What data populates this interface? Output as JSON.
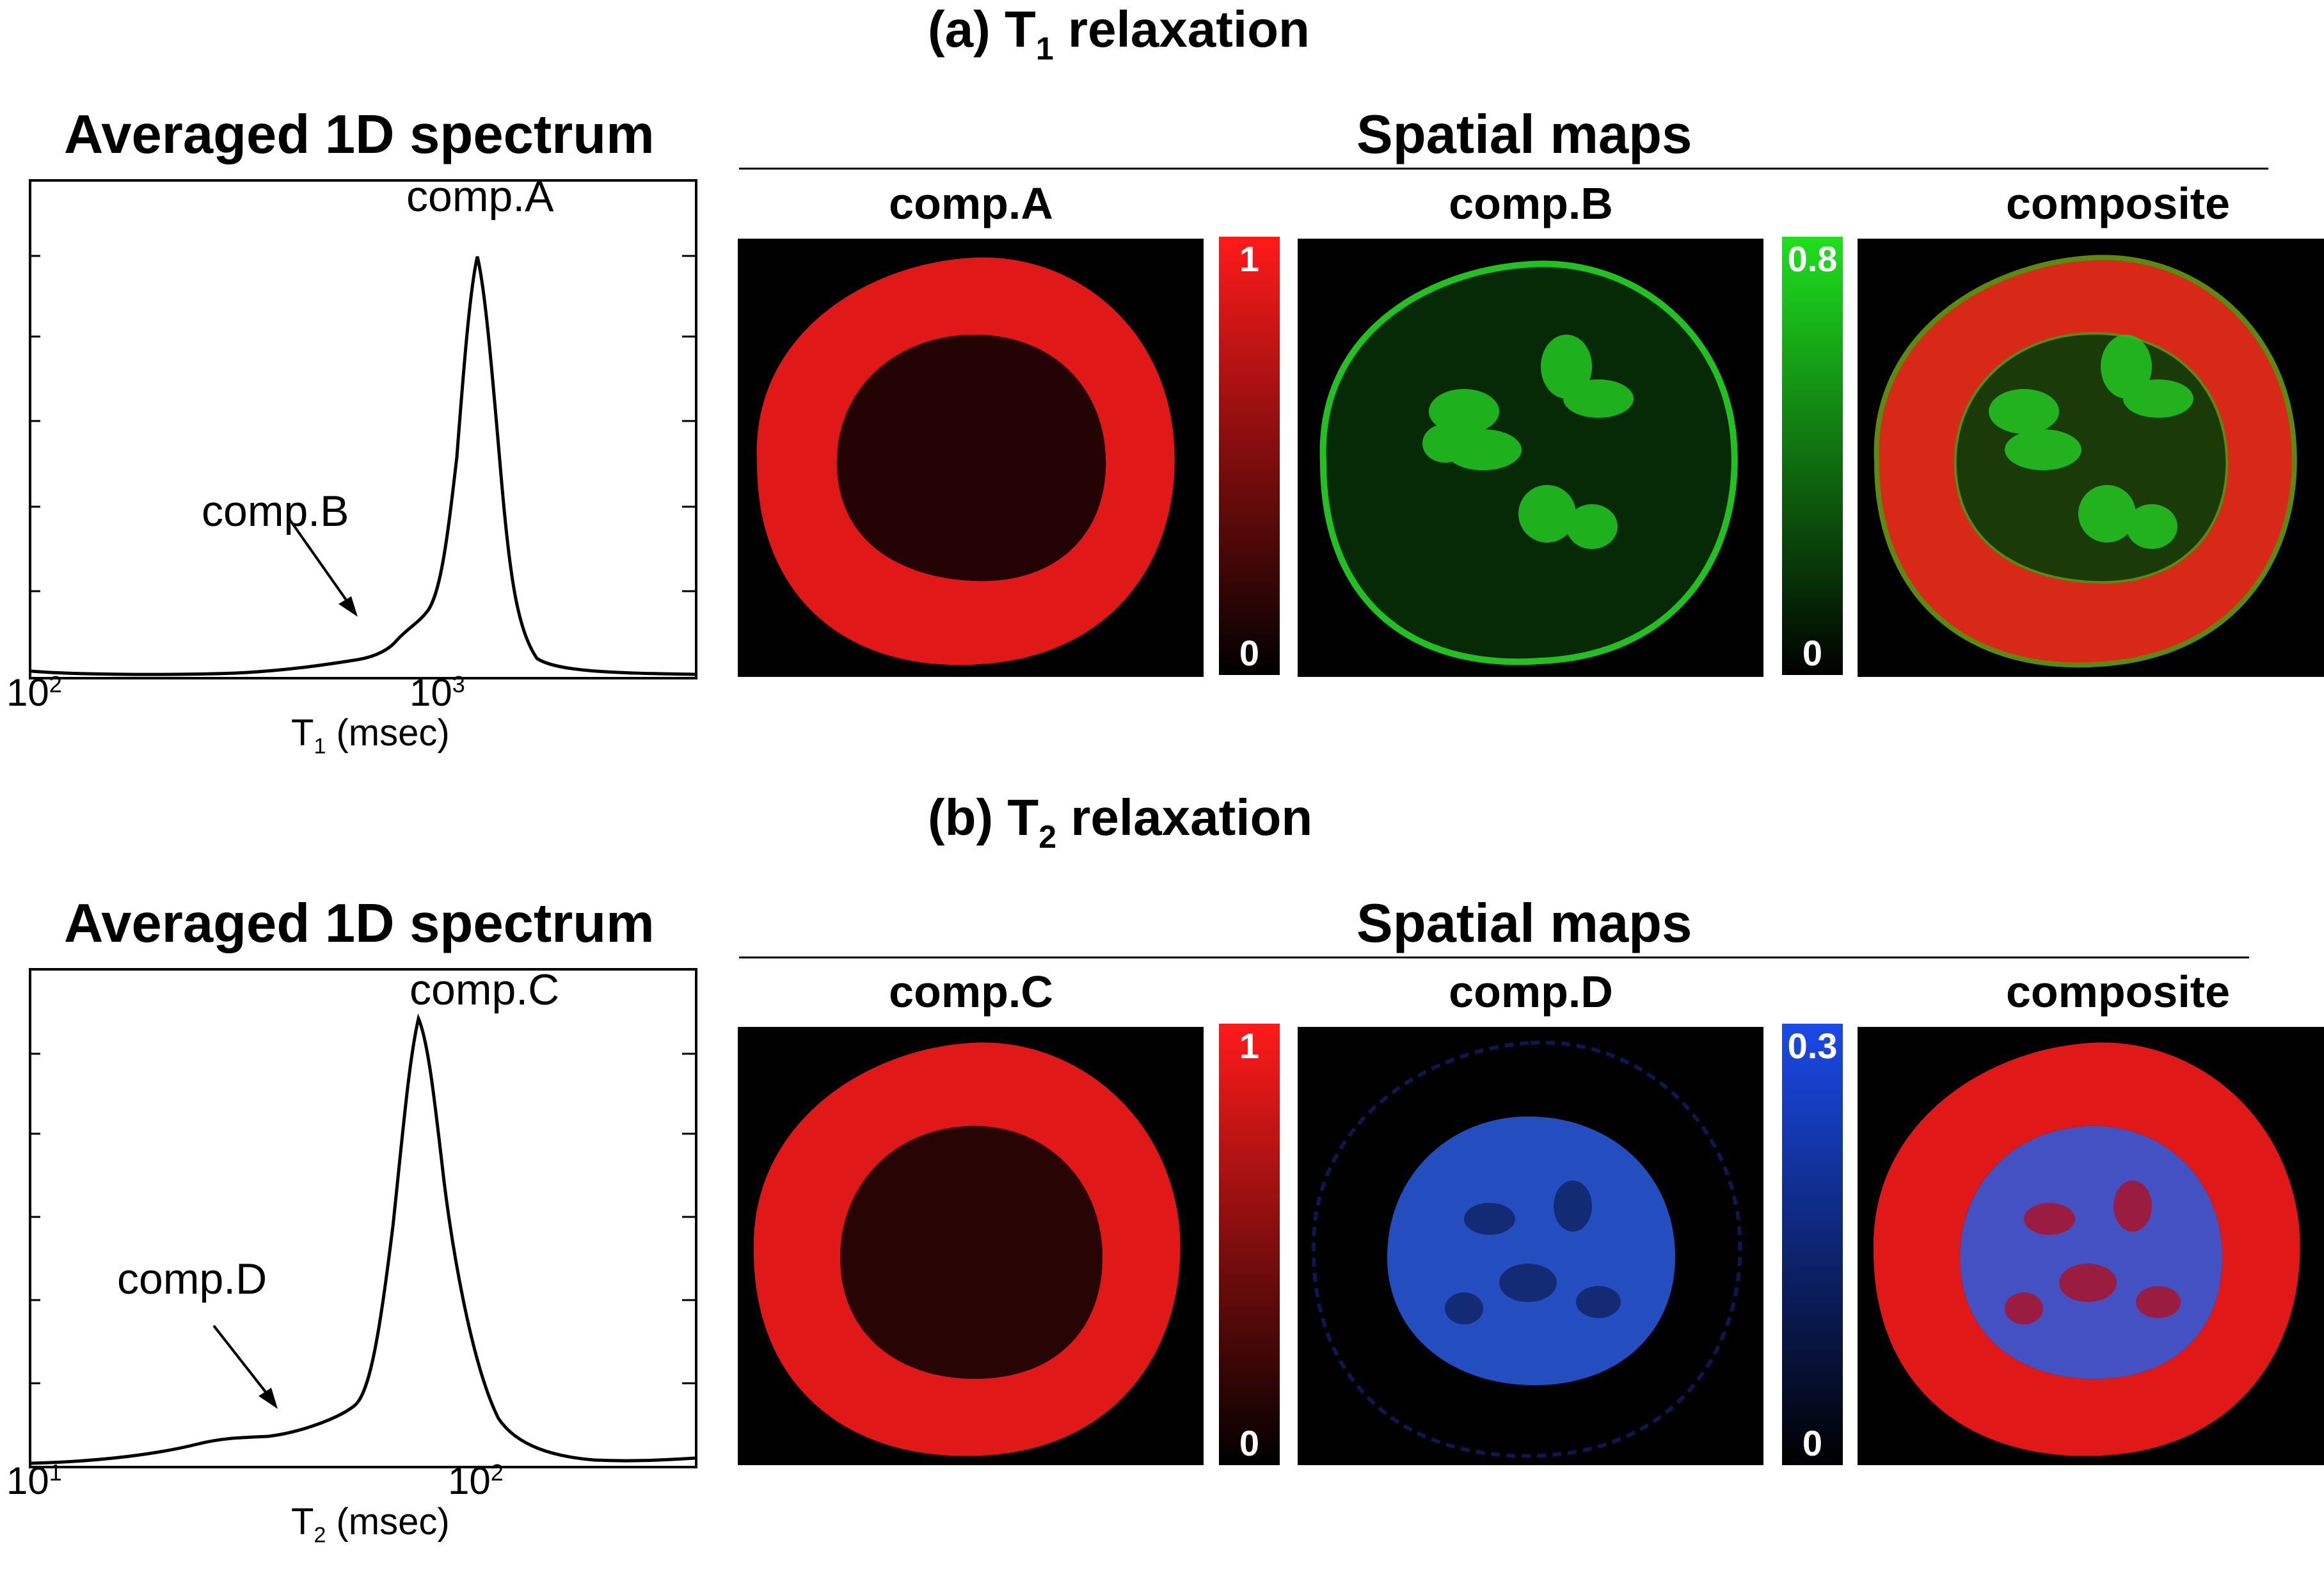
{
  "panel_a": {
    "title_prefix": "(a) T",
    "title_sub": "1",
    "title_suffix": " relaxation",
    "spectrum_title": "Averaged 1D spectrum",
    "maps_title": "Spatial maps",
    "map_titles": [
      "comp.A",
      "comp.B",
      "composite"
    ],
    "peak_label": "comp.A",
    "minor_label": "comp.B",
    "x_tick_base": "10",
    "x_tick_exps": [
      "2",
      "3"
    ],
    "xlabel_main": "T",
    "xlabel_sub": "1",
    "xlabel_unit": " (msec)",
    "colorbar_red": {
      "max": "1",
      "min": "0"
    },
    "colorbar_second": {
      "max": "0.8",
      "min": "0"
    }
  },
  "panel_b": {
    "title_prefix": "(b) T",
    "title_sub": "2",
    "title_suffix": " relaxation",
    "spectrum_title": "Averaged 1D spectrum",
    "maps_title": "Spatial maps",
    "map_titles": [
      "comp.C",
      "comp.D",
      "composite"
    ],
    "peak_label": "comp.C",
    "minor_label": "comp.D",
    "x_tick_base": "10",
    "x_tick_exps": [
      "1",
      "2"
    ],
    "xlabel_main": "T",
    "xlabel_sub": "2",
    "xlabel_unit": " (msec)",
    "colorbar_red": {
      "max": "1",
      "min": "0"
    },
    "colorbar_second": {
      "max": "0.3",
      "min": "0"
    }
  },
  "colors": {
    "red_map": "#e01818",
    "green_map": "#22c020",
    "blue_map": "#2a5ae0",
    "background": "#000000"
  }
}
